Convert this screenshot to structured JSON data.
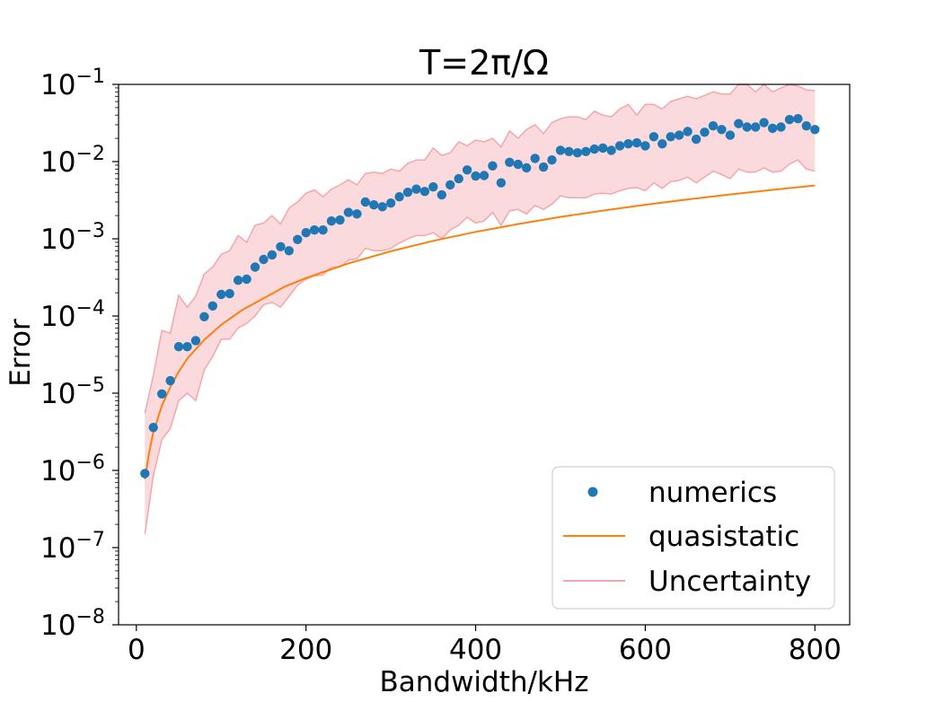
{
  "chart_data": {
    "type": "scatter",
    "title": "T=2π/Ω",
    "xlabel": "Bandwidth/kHz",
    "ylabel": "Error",
    "xlim": [
      -21,
      841
    ],
    "ylim": [
      1e-08,
      0.1
    ],
    "yscale": "log",
    "x_ticks": [
      0,
      200,
      400,
      600,
      800
    ],
    "y_ticks": [
      {
        "value": 1e-08,
        "base": "10",
        "exp": "−8"
      },
      {
        "value": 1e-07,
        "base": "10",
        "exp": "−7"
      },
      {
        "value": 1e-06,
        "base": "10",
        "exp": "−6"
      },
      {
        "value": 1e-05,
        "base": "10",
        "exp": "−5"
      },
      {
        "value": 0.0001,
        "base": "10",
        "exp": "−4"
      },
      {
        "value": 0.001,
        "base": "10",
        "exp": "−3"
      },
      {
        "value": 0.01,
        "base": "10",
        "exp": "−2"
      },
      {
        "value": 0.1,
        "base": "10",
        "exp": "−1"
      }
    ],
    "grid": false,
    "legend_position": "lower-right",
    "series": [
      {
        "name": "numerics",
        "kind": "scatter",
        "color": "#1f77b4",
        "x": [
          10,
          20,
          30,
          40,
          50,
          60,
          70,
          80,
          90,
          100,
          110,
          120,
          130,
          140,
          150,
          160,
          170,
          180,
          190,
          200,
          210,
          220,
          230,
          240,
          250,
          260,
          270,
          280,
          290,
          300,
          310,
          320,
          330,
          340,
          350,
          360,
          370,
          380,
          390,
          400,
          410,
          420,
          430,
          440,
          450,
          460,
          470,
          480,
          490,
          500,
          510,
          520,
          530,
          540,
          550,
          560,
          570,
          580,
          590,
          600,
          610,
          620,
          630,
          640,
          650,
          660,
          670,
          680,
          690,
          700,
          710,
          720,
          730,
          740,
          750,
          760,
          770,
          780,
          790,
          800
        ],
        "y": [
          9.1e-07,
          3.6e-06,
          9.8e-06,
          1.45e-05,
          4e-05,
          4e-05,
          4.8e-05,
          9.8e-05,
          0.000135,
          0.00019,
          0.000195,
          0.00029,
          0.0003,
          0.00043,
          0.00054,
          0.00062,
          0.00079,
          0.0007,
          0.00098,
          0.0012,
          0.0013,
          0.0013,
          0.0017,
          0.00175,
          0.0022,
          0.0021,
          0.003,
          0.00275,
          0.0026,
          0.0029,
          0.0035,
          0.004,
          0.0044,
          0.0041,
          0.0047,
          0.0037,
          0.005,
          0.006,
          0.0078,
          0.0065,
          0.0066,
          0.0088,
          0.0053,
          0.0098,
          0.0092,
          0.0083,
          0.011,
          0.0085,
          0.0105,
          0.014,
          0.0135,
          0.013,
          0.0135,
          0.0145,
          0.015,
          0.014,
          0.016,
          0.017,
          0.0175,
          0.016,
          0.021,
          0.017,
          0.021,
          0.022,
          0.0245,
          0.0195,
          0.024,
          0.029,
          0.026,
          0.022,
          0.031,
          0.028,
          0.028,
          0.032,
          0.027,
          0.028,
          0.035,
          0.036,
          0.029,
          0.026
        ]
      },
      {
        "name": "quasistatic",
        "kind": "line",
        "color": "#ff7f0e",
        "x": [
          10,
          15,
          20,
          30,
          40,
          50,
          60,
          80,
          100,
          125,
          150,
          175,
          200,
          250,
          300,
          350,
          400,
          450,
          500,
          550,
          600,
          650,
          700,
          750,
          800
        ],
        "y": [
          7.7e-07,
          1.7e-06,
          3.1e-06,
          6.9e-06,
          1.2e-05,
          1.9e-05,
          2.8e-05,
          4.9e-05,
          7.7e-05,
          0.00012,
          0.00017,
          0.00024,
          0.00031,
          0.00048,
          0.00069,
          0.00094,
          0.00123,
          0.00155,
          0.00192,
          0.00232,
          0.00276,
          0.00324,
          0.00375,
          0.0043,
          0.0049
        ]
      },
      {
        "name": "Uncertainty",
        "kind": "band",
        "color": "#f4a6ab",
        "fill": "#fadadd",
        "x": [
          10,
          20,
          30,
          40,
          50,
          60,
          70,
          80,
          90,
          100,
          110,
          120,
          130,
          140,
          150,
          160,
          170,
          180,
          190,
          200,
          210,
          220,
          230,
          240,
          250,
          260,
          270,
          280,
          290,
          300,
          310,
          320,
          330,
          340,
          350,
          360,
          370,
          380,
          390,
          400,
          410,
          420,
          430,
          440,
          450,
          460,
          470,
          480,
          490,
          500,
          510,
          520,
          530,
          540,
          550,
          560,
          570,
          580,
          590,
          600,
          610,
          620,
          630,
          640,
          650,
          660,
          670,
          680,
          690,
          700,
          710,
          720,
          730,
          740,
          750,
          760,
          770,
          780,
          790,
          800
        ],
        "upper": [
          5.5e-06,
          1.7e-05,
          6.5e-05,
          6e-05,
          0.000185,
          0.00013,
          0.00018,
          0.00035,
          0.00043,
          0.00063,
          0.0007,
          0.0011,
          0.0009,
          0.0015,
          0.0016,
          0.002,
          0.00155,
          0.0025,
          0.003,
          0.0039,
          0.0043,
          0.0035,
          0.0044,
          0.005,
          0.0058,
          0.005,
          0.007,
          0.0073,
          0.007,
          0.008,
          0.0075,
          0.0095,
          0.0105,
          0.0105,
          0.015,
          0.012,
          0.013,
          0.018,
          0.016,
          0.019,
          0.018,
          0.02,
          0.0155,
          0.025,
          0.02,
          0.026,
          0.03,
          0.023,
          0.032,
          0.036,
          0.038,
          0.038,
          0.035,
          0.045,
          0.04,
          0.038,
          0.048,
          0.055,
          0.04,
          0.055,
          0.055,
          0.048,
          0.06,
          0.065,
          0.07,
          0.065,
          0.072,
          0.08,
          0.075,
          0.075,
          0.1,
          0.1,
          0.08,
          0.1,
          0.08,
          0.09,
          0.1,
          0.095,
          0.085,
          0.083
        ],
        "lower": [
          1.5e-07,
          8.5e-07,
          2.5e-06,
          3.5e-06,
          8e-06,
          1e-05,
          8e-06,
          2e-05,
          3e-05,
          5e-05,
          5e-05,
          7e-05,
          8e-05,
          0.0001,
          0.00014,
          0.00015,
          0.00013,
          0.00018,
          0.00025,
          0.0003,
          0.00033,
          0.00034,
          0.00043,
          0.00043,
          0.00053,
          0.00055,
          0.00075,
          0.0007,
          0.0007,
          0.00075,
          0.00088,
          0.001,
          0.0011,
          0.0011,
          0.0012,
          0.001,
          0.0013,
          0.0015,
          0.0019,
          0.0016,
          0.0017,
          0.0022,
          0.0015,
          0.0023,
          0.0024,
          0.0021,
          0.0027,
          0.0024,
          0.0028,
          0.0036,
          0.0034,
          0.0034,
          0.0034,
          0.0038,
          0.0039,
          0.0038,
          0.0042,
          0.0045,
          0.0046,
          0.0042,
          0.0053,
          0.0045,
          0.0055,
          0.0057,
          0.0063,
          0.0053,
          0.0063,
          0.0075,
          0.0068,
          0.006,
          0.008,
          0.0073,
          0.0073,
          0.0083,
          0.0073,
          0.0075,
          0.0093,
          0.0105,
          0.008,
          0.0075
        ]
      }
    ]
  }
}
